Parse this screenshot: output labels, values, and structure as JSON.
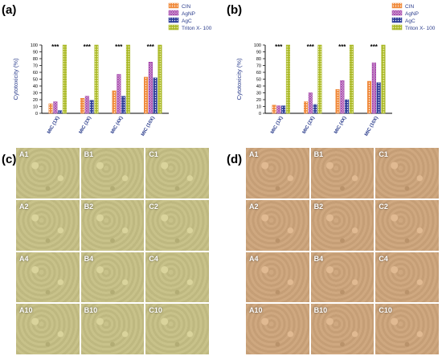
{
  "figure": {
    "panels": [
      {
        "letter": "(a)"
      },
      {
        "letter": "(b)"
      },
      {
        "letter": "(c)"
      },
      {
        "letter": "(d)"
      }
    ]
  },
  "legend_items": [
    {
      "name": "CIN",
      "color": "#f08a3c",
      "pattern": "dots"
    },
    {
      "name": "AgNP",
      "color": "#a23fa8",
      "pattern": "circles"
    },
    {
      "name": "AgC",
      "color": "#2f3f9a",
      "pattern": "dots"
    },
    {
      "name": "Triton X- 100",
      "color": "#a6b51f",
      "pattern": "grid"
    }
  ],
  "chart_data": [
    {
      "type": "bar",
      "panel": "(a)",
      "categories": [
        "MIC (1X)",
        "MIC (2X)",
        "MIC (4X)",
        "MIC (10X)"
      ],
      "series": [
        {
          "name": "CIN",
          "values": [
            14,
            22,
            33,
            53
          ]
        },
        {
          "name": "AgNP",
          "values": [
            17,
            25,
            57,
            75
          ]
        },
        {
          "name": "AgC",
          "values": [
            4,
            19,
            25,
            52
          ]
        },
        {
          "name": "Triton X- 100",
          "values": [
            100,
            100,
            100,
            100
          ]
        }
      ],
      "ylabel": "Cytotoxicity (%)",
      "ylim": [
        0,
        100
      ],
      "yticks": [
        "0",
        "10",
        "20",
        "30",
        "40",
        "50",
        "60",
        "70",
        "80",
        "90",
        "100"
      ],
      "annotations": [
        "***",
        "***",
        "***",
        "***"
      ],
      "legend": "top-right"
    },
    {
      "type": "bar",
      "panel": "(b)",
      "categories": [
        "MIC (1X)",
        "MIC (2X)",
        "MIC (4X)",
        "MIC (10X)"
      ],
      "series": [
        {
          "name": "CIN",
          "values": [
            12,
            17,
            35,
            47
          ]
        },
        {
          "name": "AgNP",
          "values": [
            11,
            30,
            48,
            74
          ]
        },
        {
          "name": "AgC",
          "values": [
            11,
            13,
            20,
            45
          ]
        },
        {
          "name": "Triton X- 100",
          "values": [
            100,
            100,
            100,
            100
          ]
        }
      ],
      "ylabel": "Cytotoxicity (%)",
      "ylim": [
        0,
        100
      ],
      "yticks": [
        "0",
        "10",
        "20",
        "30",
        "40",
        "50",
        "60",
        "70",
        "80",
        "90",
        "100"
      ],
      "annotations": [
        "***",
        "***",
        "***",
        "***"
      ],
      "legend": "top-right"
    }
  ],
  "micrographs": {
    "c": {
      "tone": "#c8c28a",
      "cells": [
        "A1",
        "B1",
        "C1",
        "A2",
        "B2",
        "C2",
        "A4",
        "B4",
        "C4",
        "A10",
        "B10",
        "C10"
      ]
    },
    "d": {
      "tone": "#cfa880",
      "cells": [
        "A1",
        "B1",
        "C1",
        "A2",
        "B2",
        "C2",
        "A4",
        "B4",
        "C4",
        "A10",
        "B10",
        "C10"
      ]
    }
  }
}
